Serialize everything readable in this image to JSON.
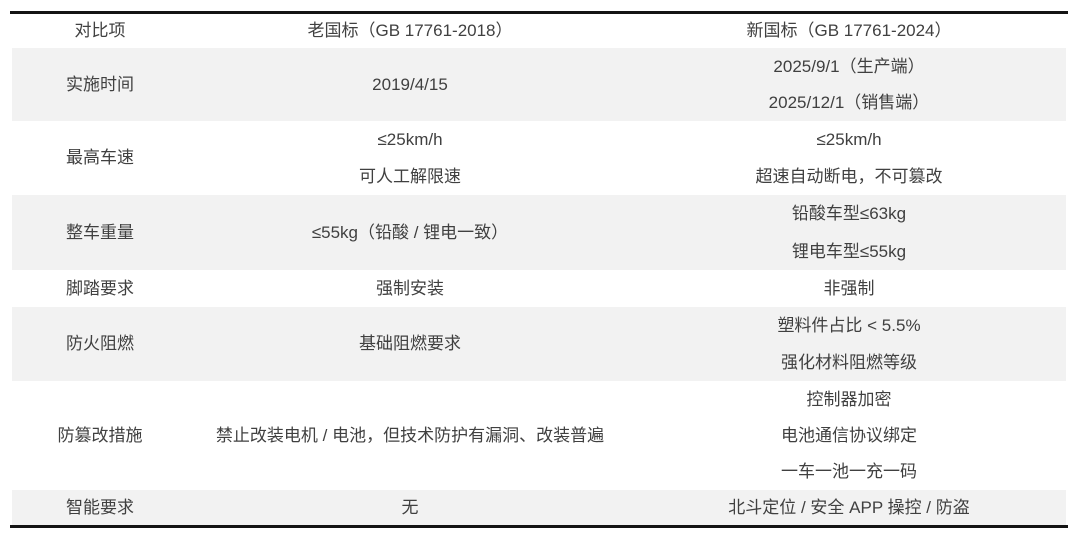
{
  "chart_data": {
    "type": "table",
    "columns": [
      "对比项",
      "老国标（GB 17761-2018）",
      "新国标（GB 17761-2024）"
    ],
    "rows": [
      {
        "label": "实施时间",
        "old": [
          "2019/4/15"
        ],
        "new": [
          "2025/9/1（生产端）",
          "2025/12/1（销售端）"
        ]
      },
      {
        "label": "最高车速",
        "old": [
          "≤25km/h",
          "可人工解限速"
        ],
        "new": [
          "≤25km/h",
          "超速自动断电，不可篡改"
        ]
      },
      {
        "label": "整车重量",
        "old": [
          "≤55kg（铅酸 / 锂电一致）"
        ],
        "new": [
          "铅酸车型≤63kg",
          "锂电车型≤55kg"
        ]
      },
      {
        "label": "脚踏要求",
        "old": [
          "强制安装"
        ],
        "new": [
          "非强制"
        ]
      },
      {
        "label": "防火阻燃",
        "old": [
          "基础阻燃要求"
        ],
        "new": [
          "塑料件占比 < 5.5%",
          "强化材料阻燃等级"
        ]
      },
      {
        "label": "防篡改措施",
        "old": [
          "禁止改装电机 / 电池，但技术防护有漏洞、改装普遍"
        ],
        "new": [
          "控制器加密",
          "电池通信协议绑定",
          "一车一池一充一码"
        ]
      },
      {
        "label": "智能要求",
        "old": [
          "无"
        ],
        "new": [
          "北斗定位 / 安全 APP 操控 / 防盗"
        ]
      }
    ],
    "layout": {
      "striped": true,
      "stripe_rows": [
        1,
        3,
        5,
        7
      ],
      "borders": "thick top and bottom rules only",
      "legend_position": "none",
      "grid": false
    },
    "colors": {
      "row_shading": "#f2f2f2",
      "border": "#141414",
      "text": "#404040",
      "background": "#ffffff"
    }
  }
}
